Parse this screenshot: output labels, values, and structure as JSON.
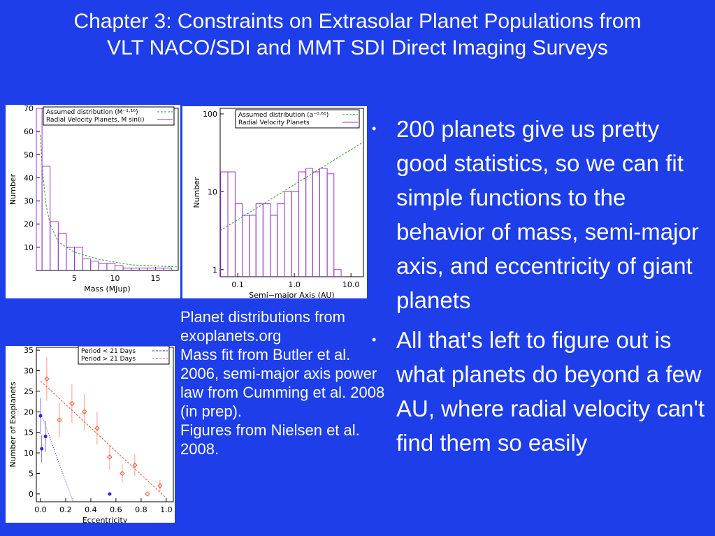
{
  "title": [
    "Chapter 3: Constraints on Extrasolar Planet Populations from",
    "VLT NACO/SDI and MMT SDI Direct Imaging Surveys"
  ],
  "figures": [
    {
      "type": "histogram",
      "xlabel": "Mass (MJup)",
      "ylabel": "Number",
      "xlim": [
        0.3,
        17.8
      ],
      "ylim": [
        0,
        70
      ],
      "xticks": [
        5,
        10,
        15
      ],
      "yticks": [
        10,
        20,
        30,
        40,
        50,
        60,
        70
      ],
      "bins": [
        0.3,
        1,
        2,
        3,
        4,
        5,
        6,
        7,
        8,
        9,
        10,
        11,
        12,
        13,
        14,
        15,
        16,
        17
      ],
      "series": [
        {
          "name": "Assumed distribution (M⁻¹·¹⁶)",
          "color": "#22aa22"
        },
        {
          "name": "Radial Velocity Planets, M sin(i)",
          "color": "#9933cc",
          "values": [
            70,
            45,
            21,
            16,
            10,
            10,
            5,
            4,
            3,
            3,
            2,
            1,
            1,
            1,
            1,
            1,
            1
          ]
        }
      ]
    },
    {
      "type": "histogram",
      "xlabel": "Semi−major Axis (AU)",
      "ylabel": "Number",
      "xlog": true,
      "ylog": true,
      "xlim": [
        0.049,
        16.6
      ],
      "ylim": [
        0.81,
        118
      ],
      "xticks": [
        0.1,
        {
          "value": 1,
          "label": "1.0"
        },
        {
          "value": 10,
          "label": "10.0"
        }
      ],
      "yticks": [
        1,
        10,
        100
      ],
      "bins": [
        0.05,
        0.067,
        0.09,
        0.12,
        0.16,
        0.21,
        0.28,
        0.38,
        0.5,
        0.67,
        0.9,
        1.2,
        1.6,
        2.1,
        2.8,
        3.8,
        5.0,
        6.7
      ],
      "series": [
        {
          "name": "Assumed distribution (a⁻⁰·⁶¹)",
          "color": "#22aa22"
        },
        {
          "name": "Radial Velocity Planets",
          "color": "#9933cc",
          "values": [
            18,
            18,
            7,
            5,
            5,
            7,
            7,
            5,
            7,
            10,
            10,
            18,
            20,
            18,
            20,
            17,
            1
          ]
        }
      ]
    },
    {
      "type": "scatter",
      "xlabel": "Eccentricity",
      "ylabel": "Number of Exoplanets",
      "xlim": [
        -0.033,
        1.056
      ],
      "ylim": [
        -1.9,
        35.7
      ],
      "xticks": [
        {
          "value": 0,
          "label": "0.0"
        },
        0.2,
        0.4,
        0.6,
        0.8,
        {
          "value": 1,
          "label": "1.0"
        }
      ],
      "yticks": [
        0,
        5,
        10,
        15,
        20,
        25,
        30,
        35
      ],
      "series": [
        {
          "name": "Period < 21 Days",
          "color": "#3322dd",
          "marker": "circle",
          "x": [
            0.0,
            0.01,
            0.04,
            0.55
          ],
          "values": [
            19,
            11,
            14,
            0
          ],
          "errors": [
            4.4,
            3.3,
            3.7,
            0
          ]
        },
        {
          "name": "Period > 21 Days",
          "color": "#ee5533",
          "marker": "diamond",
          "x": [
            0.05,
            0.15,
            0.25,
            0.35,
            0.45,
            0.55,
            0.65,
            0.75,
            0.85,
            0.95
          ],
          "values": [
            28,
            18,
            22,
            20,
            16,
            9,
            5,
            7,
            0,
            2
          ],
          "errors": [
            5.3,
            4.2,
            4.7,
            4.5,
            4,
            3,
            2.2,
            2.6,
            0,
            1.4
          ]
        }
      ]
    }
  ],
  "caption": [
    "Planet distributions from exoplanets.org",
    "Mass fit from Butler et al. 2006, semi-major axis power law from Cumming et al. 2008 (in prep).",
    "Figures from Nielsen et al. 2008."
  ],
  "bullets": [
    "200 planets give us pretty good statistics, so we can fit simple functions to the behavior of mass, semi-major axis, and eccentricity of giant planets",
    "All that's left to figure out is what planets do beyond a few AU, where radial velocity can't find them so easily"
  ]
}
